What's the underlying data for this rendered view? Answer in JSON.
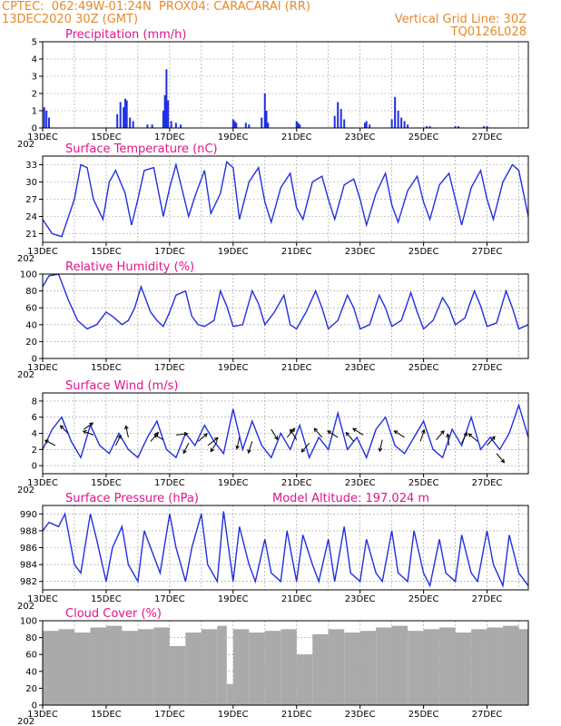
{
  "header": {
    "line1_left": "CPTEC:  062:49W-01:24N  PROX04: CARACARAI (RR)",
    "line2_left": "13DEC2020 30Z (GMT)",
    "line2_right": "Vertical Grid Line: 30Z",
    "line3_right": "TQ0126L028"
  },
  "colors": {
    "header": "#e8892a",
    "title": "#e0158a",
    "series": "#2030e0",
    "cloud": "#aaaaaa"
  },
  "x_axis": {
    "start_day": 13,
    "end_day": 28.3,
    "labels": [
      "13DEC",
      "15DEC",
      "17DEC",
      "19DEC",
      "21DEC",
      "23DEC",
      "25DEC",
      "27DEC"
    ],
    "label_days": [
      13,
      15,
      17,
      19,
      21,
      23,
      25,
      27
    ],
    "year_label": "202"
  },
  "chart_data": [
    {
      "type": "bar",
      "title": "Precipitation (mm/h)",
      "ylim": [
        0,
        5
      ],
      "yticks": [
        "0",
        "1",
        "2",
        "3",
        "4",
        "5"
      ],
      "x": [
        13.05,
        13.12,
        13.2,
        15.35,
        15.45,
        15.55,
        15.6,
        15.65,
        15.75,
        15.85,
        16.3,
        16.45,
        16.8,
        16.85,
        16.9,
        16.95,
        17.05,
        17.2,
        17.35,
        19.0,
        19.05,
        19.1,
        19.4,
        19.5,
        19.9,
        20.0,
        20.05,
        20.1,
        21.0,
        21.05,
        21.1,
        22.2,
        22.3,
        22.4,
        22.5,
        23.15,
        23.2,
        23.3,
        24.0,
        24.1,
        24.2,
        24.3,
        24.4,
        24.5,
        25.1,
        25.2,
        26.0,
        26.1,
        26.9,
        27.0
      ],
      "values": [
        1.2,
        1.0,
        0.6,
        0.8,
        1.5,
        1.2,
        1.7,
        1.6,
        0.6,
        0.4,
        0.2,
        0.2,
        1.0,
        1.9,
        3.4,
        1.6,
        0.4,
        0.3,
        0.2,
        0.5,
        0.4,
        0.3,
        0.3,
        0.2,
        0.6,
        2.0,
        1.0,
        0.3,
        0.4,
        0.3,
        0.2,
        0.7,
        1.5,
        1.1,
        0.5,
        0.3,
        0.4,
        0.2,
        0.5,
        1.8,
        1.0,
        0.6,
        0.4,
        0.2,
        0.1,
        0.1,
        0.1,
        0.1,
        0.1,
        0.1
      ]
    },
    {
      "type": "line",
      "title": "Surface Temperature (nC)",
      "ylim": [
        19.5,
        34.5
      ],
      "yticks": [
        "21",
        "24",
        "27",
        "30",
        "33"
      ],
      "tick_values": [
        21,
        24,
        27,
        30,
        33
      ],
      "x": [
        13.0,
        13.3,
        13.6,
        14.0,
        14.2,
        14.4,
        14.6,
        14.9,
        15.1,
        15.3,
        15.6,
        15.8,
        16.0,
        16.2,
        16.5,
        16.8,
        17.0,
        17.2,
        17.4,
        17.6,
        17.8,
        18.1,
        18.3,
        18.6,
        18.8,
        19.0,
        19.2,
        19.5,
        19.8,
        20.0,
        20.2,
        20.5,
        20.8,
        21.0,
        21.2,
        21.5,
        21.8,
        22.0,
        22.2,
        22.5,
        22.8,
        23.0,
        23.2,
        23.5,
        23.8,
        24.0,
        24.2,
        24.5,
        24.8,
        25.0,
        25.2,
        25.5,
        25.8,
        26.0,
        26.2,
        26.5,
        26.8,
        27.0,
        27.2,
        27.5,
        27.8,
        28.0,
        28.3
      ],
      "values": [
        23.5,
        21.0,
        20.5,
        27.0,
        33.0,
        32.5,
        27.0,
        23.5,
        30.0,
        32.0,
        28.0,
        22.5,
        27.0,
        32.0,
        32.5,
        24.0,
        29.0,
        33.0,
        28.5,
        24.0,
        27.5,
        32.0,
        24.5,
        28.0,
        33.5,
        32.5,
        23.5,
        30.0,
        32.5,
        26.5,
        23.0,
        29.0,
        31.5,
        25.5,
        23.5,
        30.0,
        31.0,
        27.0,
        23.5,
        29.5,
        30.5,
        27.0,
        22.5,
        28.0,
        31.5,
        26.0,
        23.0,
        28.5,
        31.0,
        26.5,
        23.5,
        29.5,
        31.5,
        27.0,
        22.5,
        29.0,
        32.0,
        27.0,
        23.5,
        30.0,
        33.0,
        32.0,
        24.0
      ]
    },
    {
      "type": "line",
      "title": "Relative Humidity (%)",
      "ylim": [
        0,
        100
      ],
      "yticks": [
        "0",
        "20",
        "40",
        "60",
        "80",
        "100"
      ],
      "tick_values": [
        0,
        20,
        40,
        60,
        80,
        100
      ],
      "x": [
        13.0,
        13.2,
        13.5,
        13.8,
        14.1,
        14.4,
        14.7,
        15.0,
        15.2,
        15.5,
        15.7,
        15.9,
        16.1,
        16.4,
        16.6,
        16.8,
        17.0,
        17.2,
        17.5,
        17.7,
        17.9,
        18.1,
        18.4,
        18.6,
        18.8,
        19.0,
        19.3,
        19.6,
        19.8,
        20.0,
        20.3,
        20.6,
        20.8,
        21.0,
        21.3,
        21.6,
        21.8,
        22.0,
        22.3,
        22.6,
        22.8,
        23.0,
        23.3,
        23.6,
        23.8,
        24.0,
        24.3,
        24.6,
        24.8,
        25.0,
        25.3,
        25.6,
        25.8,
        26.0,
        26.3,
        26.6,
        26.8,
        27.0,
        27.3,
        27.6,
        27.8,
        28.0,
        28.3
      ],
      "values": [
        85,
        98,
        100,
        70,
        45,
        35,
        40,
        55,
        50,
        40,
        45,
        60,
        85,
        55,
        45,
        38,
        55,
        75,
        80,
        50,
        40,
        38,
        45,
        80,
        62,
        38,
        40,
        80,
        65,
        40,
        55,
        75,
        40,
        35,
        55,
        80,
        60,
        35,
        45,
        75,
        60,
        35,
        40,
        75,
        60,
        38,
        45,
        78,
        55,
        35,
        45,
        72,
        60,
        40,
        48,
        80,
        62,
        38,
        42,
        80,
        60,
        35,
        40
      ]
    },
    {
      "type": "line",
      "title": "Surface Wind (m/s)",
      "ylim": [
        -1,
        9
      ],
      "yticks": [
        "0",
        "2",
        "4",
        "6",
        "8"
      ],
      "tick_values": [
        0,
        2,
        4,
        6,
        8
      ],
      "x": [
        13.0,
        13.3,
        13.6,
        13.9,
        14.2,
        14.5,
        14.8,
        15.1,
        15.4,
        15.7,
        16.0,
        16.3,
        16.6,
        16.9,
        17.2,
        17.5,
        17.8,
        18.1,
        18.4,
        18.7,
        19.0,
        19.3,
        19.6,
        19.9,
        20.2,
        20.5,
        20.8,
        21.1,
        21.4,
        21.7,
        22.0,
        22.3,
        22.6,
        22.9,
        23.2,
        23.5,
        23.8,
        24.1,
        24.4,
        24.7,
        25.0,
        25.3,
        25.6,
        25.9,
        26.2,
        26.5,
        26.8,
        27.1,
        27.4,
        27.7,
        28.0,
        28.3
      ],
      "values": [
        2.0,
        4.5,
        6.0,
        3.0,
        1.0,
        5.0,
        2.5,
        1.5,
        4.0,
        2.0,
        1.0,
        3.5,
        5.5,
        2.0,
        1.0,
        4.0,
        2.5,
        5.0,
        3.0,
        1.5,
        7.0,
        2.0,
        5.5,
        2.5,
        1.0,
        4.0,
        2.0,
        5.0,
        1.0,
        3.5,
        2.0,
        6.5,
        2.0,
        3.5,
        1.0,
        4.5,
        6.0,
        2.5,
        1.5,
        3.5,
        5.5,
        2.0,
        1.0,
        4.5,
        2.5,
        6.0,
        2.0,
        3.5,
        2.0,
        4.0,
        7.5,
        3.5
      ],
      "arrows": [
        {
          "x": 13.4,
          "y": 2.5,
          "u": -0.8,
          "v": 0.4
        },
        {
          "x": 13.8,
          "y": 4.0,
          "u": -0.6,
          "v": 0.6
        },
        {
          "x": 14.3,
          "y": 4.5,
          "u": 0.7,
          "v": 0.5
        },
        {
          "x": 14.6,
          "y": 3.8,
          "u": -0.8,
          "v": 0.3
        },
        {
          "x": 15.3,
          "y": 2.5,
          "u": 0.4,
          "v": 0.8
        },
        {
          "x": 15.7,
          "y": 3.5,
          "u": -0.2,
          "v": 0.9
        },
        {
          "x": 16.4,
          "y": 3.0,
          "u": 0.6,
          "v": 0.7
        },
        {
          "x": 16.8,
          "y": 3.2,
          "u": -0.7,
          "v": 0.4
        },
        {
          "x": 17.2,
          "y": 3.8,
          "u": 0.9,
          "v": 0.1
        },
        {
          "x": 17.6,
          "y": 2.8,
          "u": -0.4,
          "v": -0.8
        },
        {
          "x": 17.9,
          "y": 3.0,
          "u": 0.7,
          "v": 0.6
        },
        {
          "x": 18.2,
          "y": 2.5,
          "u": 0.8,
          "v": 0.6
        },
        {
          "x": 18.5,
          "y": 3.0,
          "u": -0.5,
          "v": -0.8
        },
        {
          "x": 19.2,
          "y": 3.5,
          "u": -0.2,
          "v": -0.9
        },
        {
          "x": 19.6,
          "y": 3.0,
          "u": -0.3,
          "v": -0.9
        },
        {
          "x": 20.2,
          "y": 4.5,
          "u": 0.5,
          "v": -0.8
        },
        {
          "x": 20.7,
          "y": 3.5,
          "u": 0.6,
          "v": 0.7
        },
        {
          "x": 21.0,
          "y": 3.2,
          "u": -0.5,
          "v": 0.8
        },
        {
          "x": 21.4,
          "y": 2.8,
          "u": -0.6,
          "v": -0.7
        },
        {
          "x": 21.8,
          "y": 3.5,
          "u": -0.6,
          "v": 0.7
        },
        {
          "x": 22.3,
          "y": 3.5,
          "u": -0.8,
          "v": 0.5
        },
        {
          "x": 22.8,
          "y": 3.0,
          "u": -0.6,
          "v": 0.7
        },
        {
          "x": 23.1,
          "y": 3.8,
          "u": -0.8,
          "v": 0.5
        },
        {
          "x": 23.7,
          "y": 3.2,
          "u": -0.2,
          "v": -0.9
        },
        {
          "x": 24.4,
          "y": 3.5,
          "u": -0.8,
          "v": 0.5
        },
        {
          "x": 24.9,
          "y": 3.0,
          "u": 0.3,
          "v": 0.9
        },
        {
          "x": 25.4,
          "y": 3.2,
          "u": 0.6,
          "v": 0.7
        },
        {
          "x": 25.8,
          "y": 2.5,
          "u": -0.1,
          "v": 0.9
        },
        {
          "x": 26.2,
          "y": 2.8,
          "u": 0.4,
          "v": 0.8
        },
        {
          "x": 26.7,
          "y": 3.0,
          "u": -0.7,
          "v": 0.6
        },
        {
          "x": 27.0,
          "y": 2.5,
          "u": 0.6,
          "v": 0.7
        },
        {
          "x": 27.3,
          "y": 1.5,
          "u": 0.6,
          "v": -0.7
        }
      ]
    },
    {
      "type": "line",
      "title": "Surface Pressure (hPa)",
      "annotation": "Model Altitude: 197.024 m",
      "ylim": [
        981,
        991
      ],
      "yticks": [
        "982",
        "984",
        "986",
        "988",
        "990"
      ],
      "tick_values": [
        982,
        984,
        986,
        988,
        990
      ],
      "x": [
        13.0,
        13.2,
        13.5,
        13.7,
        14.0,
        14.2,
        14.5,
        14.7,
        15.0,
        15.2,
        15.5,
        15.7,
        16.0,
        16.2,
        16.5,
        16.7,
        17.0,
        17.2,
        17.5,
        17.7,
        18.0,
        18.2,
        18.5,
        18.7,
        19.0,
        19.2,
        19.5,
        19.7,
        20.0,
        20.2,
        20.5,
        20.7,
        21.0,
        21.2,
        21.5,
        21.7,
        22.0,
        22.2,
        22.5,
        22.7,
        23.0,
        23.2,
        23.5,
        23.7,
        24.0,
        24.2,
        24.5,
        24.7,
        25.0,
        25.2,
        25.5,
        25.7,
        26.0,
        26.2,
        26.5,
        26.7,
        27.0,
        27.2,
        27.5,
        27.7,
        28.0,
        28.3
      ],
      "values": [
        988,
        989,
        988.5,
        990,
        984,
        983,
        990,
        987,
        982,
        986,
        988.5,
        984,
        982,
        988,
        985,
        983,
        990,
        986,
        982,
        986,
        990,
        984,
        982,
        990.3,
        982,
        988.5,
        984,
        982,
        987,
        983,
        982,
        988,
        982,
        987.5,
        984,
        982,
        987,
        982,
        988.5,
        983,
        982,
        987,
        983,
        982,
        988,
        983,
        982,
        988,
        983,
        981.5,
        987,
        983,
        982,
        987.5,
        983,
        982,
        988,
        984,
        981.5,
        987.5,
        983,
        981.5
      ]
    },
    {
      "type": "bar",
      "title": "Cloud Cover (%)",
      "ylim": [
        0,
        100
      ],
      "yticks": [
        "0",
        "20",
        "40",
        "60",
        "80",
        "100"
      ],
      "tick_values": [
        0,
        20,
        40,
        60,
        80,
        100
      ],
      "x": [
        13.0,
        13.5,
        14.0,
        14.5,
        15.0,
        15.5,
        16.0,
        16.5,
        17.0,
        17.5,
        18.0,
        18.5,
        18.8,
        19.0,
        19.5,
        20.0,
        20.5,
        21.0,
        21.5,
        22.0,
        22.5,
        23.0,
        23.5,
        24.0,
        24.5,
        25.0,
        25.5,
        26.0,
        26.5,
        27.0,
        27.5,
        28.0,
        28.3
      ],
      "values": [
        88,
        90,
        86,
        92,
        94,
        88,
        90,
        92,
        70,
        86,
        90,
        94,
        25,
        90,
        86,
        88,
        90,
        60,
        84,
        90,
        86,
        88,
        92,
        94,
        88,
        90,
        92,
        86,
        90,
        92,
        94,
        90,
        92
      ]
    }
  ]
}
